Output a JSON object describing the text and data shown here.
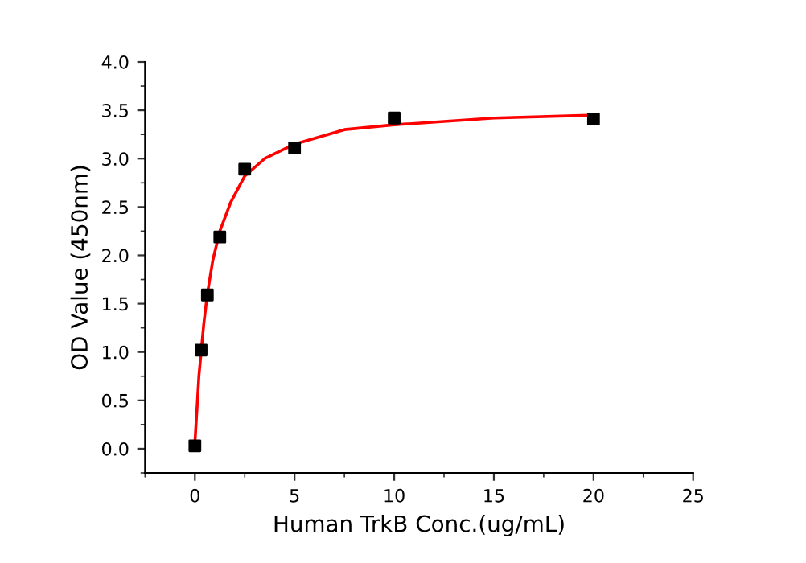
{
  "chart_data": {
    "type": "scatter",
    "xlabel": "Human TrkB Conc.(ug/mL)",
    "ylabel": "OD Value (450nm)",
    "xlim": [
      -2.5,
      25
    ],
    "ylim": [
      -0.25,
      4.0
    ],
    "xticks": [
      0,
      5,
      10,
      15,
      20,
      25
    ],
    "yticks": [
      {
        "value": 0,
        "label": "0.0"
      },
      {
        "value": 0.5,
        "label": "0.5"
      },
      {
        "value": 1,
        "label": "1.0"
      },
      {
        "value": 1.5,
        "label": "1.5"
      },
      {
        "value": 2,
        "label": "2.0"
      },
      {
        "value": 2.5,
        "label": "2.5"
      },
      {
        "value": 3,
        "label": "3.0"
      },
      {
        "value": 3.5,
        "label": "3.5"
      },
      {
        "value": 4,
        "label": "4.0"
      }
    ],
    "grid": false,
    "legend": false,
    "series": [
      {
        "type": "line",
        "color": "#ff0000",
        "marker": "none",
        "line_style": "solid",
        "x": [
          0,
          0.1,
          0.2,
          0.3125,
          0.45,
          0.625,
          0.9,
          1.25,
          1.8,
          2.5,
          3.5,
          5,
          7.5,
          10,
          15,
          20
        ],
        "values": [
          0.06,
          0.4,
          0.75,
          1.0,
          1.3,
          1.6,
          1.95,
          2.25,
          2.55,
          2.82,
          3.0,
          3.15,
          3.3,
          3.35,
          3.42,
          3.45
        ]
      },
      {
        "color": "#000000",
        "marker": "square",
        "x": [
          0,
          0.3125,
          0.625,
          1.25,
          2.5,
          5,
          10,
          20
        ],
        "values": [
          0.03,
          1.02,
          1.59,
          2.19,
          2.89,
          3.11,
          3.42,
          3.41
        ]
      }
    ]
  }
}
